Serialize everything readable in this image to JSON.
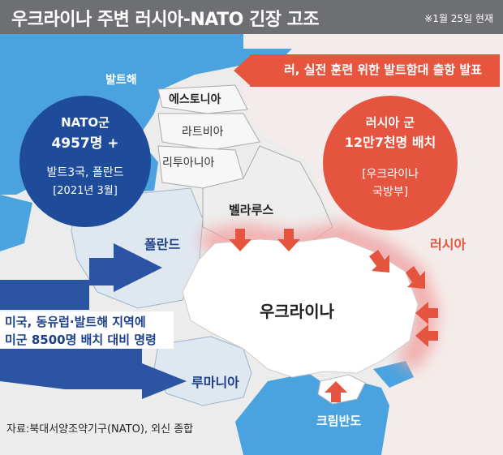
{
  "header": {
    "title": "우크라이나 주변 러시아-NATO 긴장 고조",
    "date": "※1월 25일 현재"
  },
  "labels": {
    "baltic_sea": "발트해",
    "estonia": "에스토니아",
    "latvia": "라트비아",
    "lithuania": "리투아니아",
    "belarus": "벨라루스",
    "poland": "폴란드",
    "ukraine": "우크라이나",
    "russia": "러시아",
    "romania": "루마니아",
    "crimea": "크림반도"
  },
  "nato_callout": {
    "line1": "NATO군",
    "line2": "4957명 +",
    "line3": "발트3국, 폴란드",
    "line4": "[2021년 3월]"
  },
  "russia_callout": {
    "line1": "러시아 군",
    "line2": "12만7천명 배치",
    "line3": "[우크라이나",
    "line4": "국방부]"
  },
  "russia_banner": "러, 실전 훈련 위한 발트함대 출항 발표",
  "us_callout": {
    "line1": "미국, 동유럽·발트해 지역에",
    "line2": "미군 8500명 배치 대비 명령"
  },
  "source": "자료:북대서양조약기구(NATO), 외신 종합",
  "colors": {
    "sea": "#4aa3df",
    "land": "#eeeeee",
    "russia_land": "#f4ecea",
    "nato_blue": "#1e4b9a",
    "russia_red": "#e5543e",
    "arrow_blue": "#2b54a3",
    "poland_fill": "#dfe8f1",
    "ukraine_fill": "#ffffff"
  },
  "icons": {
    "red_arrows": "troop-movement-arrow-icon",
    "blue_arrows": "deployment-arrow-icon"
  }
}
